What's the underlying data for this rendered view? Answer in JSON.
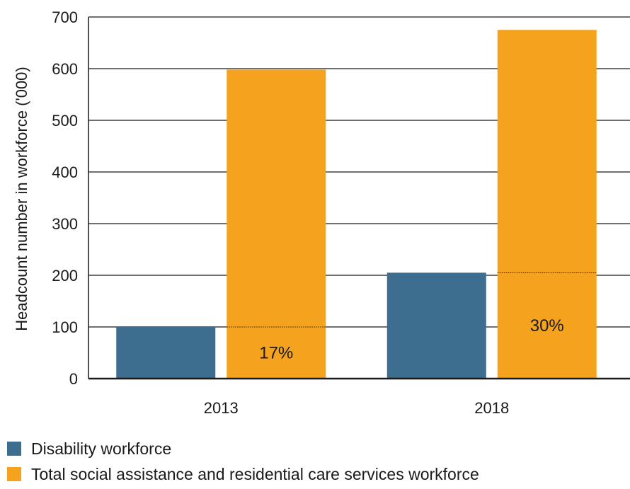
{
  "chart_data": {
    "type": "bar",
    "categories": [
      "2013",
      "2018"
    ],
    "series": [
      {
        "name": "Disability workforce",
        "values": [
          100,
          205
        ],
        "color": "#3d6d8f"
      },
      {
        "name": "Total social assistance and residential care services workforce",
        "values": [
          598,
          675
        ],
        "color": "#f5a31f"
      }
    ],
    "share_labels": [
      "17%",
      "30%"
    ],
    "xlabel": "",
    "ylabel": "Headcount number in workforce ('000)",
    "ylim": [
      0,
      700
    ],
    "yticks": [
      0,
      100,
      200,
      300,
      400,
      500,
      600,
      700
    ],
    "grid": true,
    "legend_position": "bottom-left"
  }
}
